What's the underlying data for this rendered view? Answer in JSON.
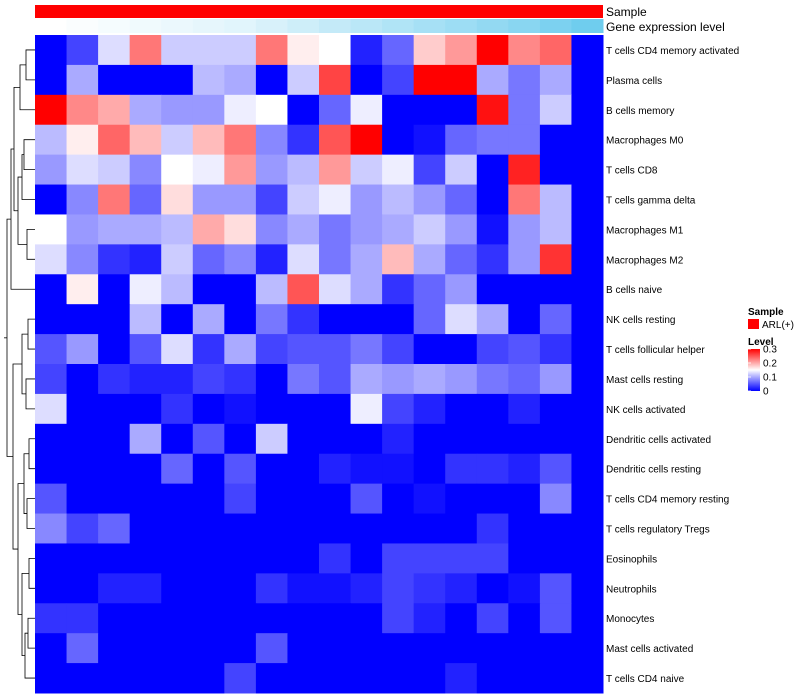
{
  "chart_data": {
    "type": "heatmap",
    "title": "",
    "annotation_tracks": [
      {
        "name": "Sample",
        "color": "#ff0000"
      },
      {
        "name": "Gene expression level",
        "color_low": "#ffffff",
        "color_high": "#5bc6ec"
      }
    ],
    "rows": [
      "T cells CD4 memory activated",
      "Plasma cells",
      "B cells memory",
      "Macrophages M0",
      "T cells CD8",
      "T cells gamma delta",
      "Macrophages M1",
      "Macrophages M2",
      "B cells naive",
      "NK cells resting",
      "T cells follicular helper",
      "Mast cells resting",
      "NK cells activated",
      "Dendritic cells activated",
      "Dendritic cells resting",
      "T cells CD4 memory resting",
      "T cells regulatory  Tregs",
      "Eosinophils",
      "Neutrophils",
      "Monocytes",
      "Mast cells activated",
      "T cells CD4 naive"
    ],
    "n_columns": 18,
    "expression_level": [
      0.0,
      0.03,
      0.06,
      0.09,
      0.12,
      0.15,
      0.18,
      0.24,
      0.3,
      0.36,
      0.42,
      0.48,
      0.54,
      0.6,
      0.66,
      0.72,
      0.8,
      0.88
    ],
    "values": [
      [
        0.0,
        0.04,
        0.13,
        0.23,
        0.12,
        0.12,
        0.12,
        0.23,
        0.16,
        0.15,
        0.02,
        0.06,
        0.18,
        0.21,
        0.3,
        0.22,
        0.24,
        0.0
      ],
      [
        0.0,
        0.1,
        0.0,
        0.0,
        0.0,
        0.11,
        0.1,
        0.0,
        0.12,
        0.26,
        0.0,
        0.04,
        0.3,
        0.3,
        0.1,
        0.07,
        0.1,
        0.0
      ],
      [
        0.3,
        0.22,
        0.2,
        0.1,
        0.09,
        0.09,
        0.14,
        0.15,
        0.0,
        0.06,
        0.14,
        0.0,
        0.0,
        0.0,
        0.29,
        0.07,
        0.12,
        0.0
      ],
      [
        0.11,
        0.16,
        0.24,
        0.19,
        0.12,
        0.19,
        0.23,
        0.08,
        0.03,
        0.25,
        0.3,
        0.0,
        0.01,
        0.06,
        0.07,
        0.07,
        0.0,
        0.0
      ],
      [
        0.09,
        0.13,
        0.12,
        0.08,
        0.15,
        0.14,
        0.21,
        0.09,
        0.11,
        0.21,
        0.12,
        0.14,
        0.04,
        0.12,
        0.0,
        0.28,
        0.0,
        0.0
      ],
      [
        0.0,
        0.08,
        0.23,
        0.06,
        0.17,
        0.09,
        0.09,
        0.04,
        0.12,
        0.14,
        0.09,
        0.11,
        0.09,
        0.06,
        0.0,
        0.23,
        0.11,
        0.0
      ],
      [
        0.15,
        0.09,
        0.1,
        0.1,
        0.11,
        0.2,
        0.17,
        0.08,
        0.1,
        0.07,
        0.09,
        0.1,
        0.12,
        0.09,
        0.01,
        0.09,
        0.11,
        0.0
      ],
      [
        0.13,
        0.08,
        0.03,
        0.02,
        0.12,
        0.06,
        0.08,
        0.02,
        0.13,
        0.07,
        0.1,
        0.19,
        0.1,
        0.06,
        0.03,
        0.09,
        0.27,
        0.0
      ],
      [
        0.0,
        0.16,
        0.0,
        0.14,
        0.11,
        0.0,
        0.0,
        0.11,
        0.25,
        0.13,
        0.1,
        0.03,
        0.06,
        0.09,
        0.0,
        0.0,
        0.0,
        0.0
      ],
      [
        0.0,
        0.0,
        0.0,
        0.11,
        0.0,
        0.1,
        0.0,
        0.07,
        0.03,
        0.0,
        0.0,
        0.0,
        0.06,
        0.13,
        0.1,
        0.0,
        0.06,
        0.0
      ],
      [
        0.05,
        0.09,
        0.0,
        0.05,
        0.13,
        0.03,
        0.1,
        0.04,
        0.05,
        0.05,
        0.07,
        0.04,
        0.0,
        0.0,
        0.04,
        0.05,
        0.03,
        0.0
      ],
      [
        0.04,
        0.0,
        0.03,
        0.02,
        0.02,
        0.04,
        0.03,
        0.0,
        0.07,
        0.05,
        0.1,
        0.09,
        0.1,
        0.09,
        0.07,
        0.06,
        0.09,
        0.0
      ],
      [
        0.13,
        0.0,
        0.0,
        0.0,
        0.03,
        0.0,
        0.01,
        0.0,
        0.0,
        0.0,
        0.14,
        0.04,
        0.02,
        0.0,
        0.0,
        0.02,
        0.0,
        0.0
      ],
      [
        0.0,
        0.0,
        0.0,
        0.1,
        0.0,
        0.05,
        0.0,
        0.12,
        0.0,
        0.0,
        0.0,
        0.02,
        0.0,
        0.0,
        0.0,
        0.0,
        0.0,
        0.0
      ],
      [
        0.0,
        0.0,
        0.0,
        0.0,
        0.06,
        0.0,
        0.05,
        0.0,
        0.0,
        0.02,
        0.01,
        0.01,
        0.0,
        0.03,
        0.03,
        0.02,
        0.05,
        0.0
      ],
      [
        0.05,
        0.0,
        0.0,
        0.0,
        0.0,
        0.0,
        0.04,
        0.0,
        0.0,
        0.0,
        0.05,
        0.0,
        0.01,
        0.0,
        0.0,
        0.0,
        0.08,
        0.0
      ],
      [
        0.08,
        0.04,
        0.06,
        0.0,
        0.0,
        0.0,
        0.0,
        0.0,
        0.0,
        0.0,
        0.0,
        0.0,
        0.0,
        0.0,
        0.03,
        0.0,
        0.0,
        0.0
      ],
      [
        0.0,
        0.0,
        0.0,
        0.0,
        0.0,
        0.0,
        0.0,
        0.0,
        0.0,
        0.03,
        0.0,
        0.04,
        0.04,
        0.04,
        0.04,
        0.0,
        0.0,
        0.0
      ],
      [
        0.0,
        0.0,
        0.02,
        0.02,
        0.0,
        0.0,
        0.0,
        0.03,
        0.01,
        0.01,
        0.02,
        0.04,
        0.03,
        0.02,
        0.0,
        0.01,
        0.05,
        0.0
      ],
      [
        0.03,
        0.03,
        0.0,
        0.0,
        0.0,
        0.0,
        0.0,
        0.0,
        0.0,
        0.0,
        0.0,
        0.04,
        0.02,
        0.0,
        0.04,
        0.0,
        0.05,
        0.0
      ],
      [
        0.0,
        0.06,
        0.0,
        0.0,
        0.0,
        0.0,
        0.0,
        0.05,
        0.0,
        0.0,
        0.0,
        0.0,
        0.0,
        0.0,
        0.0,
        0.0,
        0.0,
        0.0
      ],
      [
        0.0,
        0.0,
        0.0,
        0.0,
        0.0,
        0.0,
        0.04,
        0.0,
        0.0,
        0.0,
        0.0,
        0.0,
        0.0,
        0.02,
        0.0,
        0.0,
        0.0,
        0.0
      ]
    ],
    "color_scale": {
      "min": 0,
      "mid": 0.15,
      "max": 0.3,
      "low": "#0000ff",
      "mid_color": "#ffffff",
      "high": "#ff0000"
    },
    "legend": {
      "sample_title": "Sample",
      "sample_item": "ARL(+)",
      "level_title": "Level",
      "level_ticks": [
        {
          "value": 0.3,
          "label": "0.3"
        },
        {
          "value": 0.2,
          "label": "0.2"
        },
        {
          "value": 0.1,
          "label": "0.1"
        },
        {
          "value": 0,
          "label": "0"
        }
      ]
    }
  }
}
